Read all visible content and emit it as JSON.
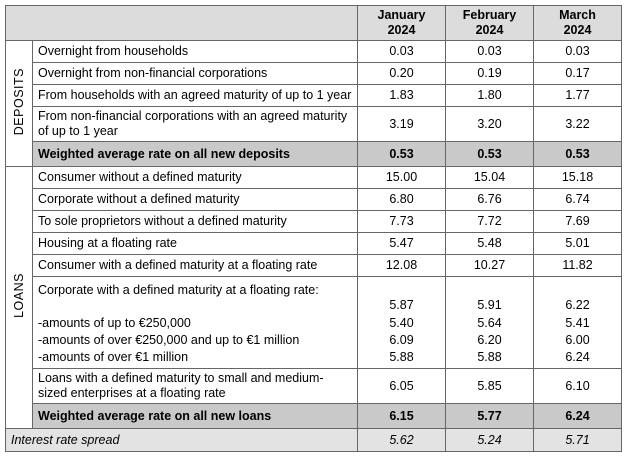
{
  "header": {
    "columns": [
      {
        "month": "January",
        "year": "2024"
      },
      {
        "month": "February",
        "year": "2024"
      },
      {
        "month": "March",
        "year": "2024"
      }
    ]
  },
  "sections": [
    {
      "name": "DEPOSITS",
      "rows": [
        {
          "label": "Overnight from households",
          "values": [
            "0.03",
            "0.03",
            "0.03"
          ]
        },
        {
          "label": "Overnight from non-financial corporations",
          "values": [
            "0.20",
            "0.19",
            "0.17"
          ]
        },
        {
          "label": "From households with an agreed maturity of up to 1 year",
          "values": [
            "1.83",
            "1.80",
            "1.77"
          ]
        },
        {
          "label": "From non-financial corporations with an agreed maturity of up to 1 year",
          "values": [
            "3.19",
            "3.20",
            "3.22"
          ]
        }
      ],
      "total": {
        "label": "Weighted average rate on all new deposits",
        "values": [
          "0.53",
          "0.53",
          "0.53"
        ]
      }
    },
    {
      "name": "LOANS",
      "rows": [
        {
          "label": "Consumer without a defined maturity",
          "values": [
            "15.00",
            "15.04",
            "15.18"
          ]
        },
        {
          "label": "Corporate without a defined maturity",
          "values": [
            "6.80",
            "6.76",
            "6.74"
          ]
        },
        {
          "label": "To sole proprietors without a defined maturity",
          "values": [
            "7.73",
            "7.72",
            "7.69"
          ]
        },
        {
          "label": "Housing at a floating rate",
          "values": [
            "5.47",
            "5.48",
            "5.01"
          ]
        },
        {
          "label": "Consumer with a defined maturity at a floating rate",
          "values": [
            "12.08",
            "10.27",
            "11.82"
          ]
        },
        {
          "label": "Corporate with a defined maturity at a floating rate:",
          "values": [
            "5.87",
            "5.91",
            "6.22"
          ],
          "subrows": [
            {
              "label": "-amounts of up to €250,000",
              "values": [
                "5.40",
                "5.64",
                "5.41"
              ]
            },
            {
              "label": "-amounts of over €250,000 and up to €1 million",
              "values": [
                "6.09",
                "6.20",
                "6.00"
              ]
            },
            {
              "label": "-amounts of over €1 million",
              "values": [
                "5.88",
                "5.88",
                "6.24"
              ]
            }
          ]
        },
        {
          "label": "Loans with a defined maturity to small and medium-sized enterprises at a floating rate",
          "values": [
            "6.05",
            "5.85",
            "6.10"
          ]
        }
      ],
      "total": {
        "label": "Weighted average rate on all new loans",
        "values": [
          "6.15",
          "5.77",
          "6.24"
        ]
      }
    }
  ],
  "spread": {
    "label": "Interest rate spread",
    "values": [
      "5.62",
      "5.24",
      "5.71"
    ]
  }
}
